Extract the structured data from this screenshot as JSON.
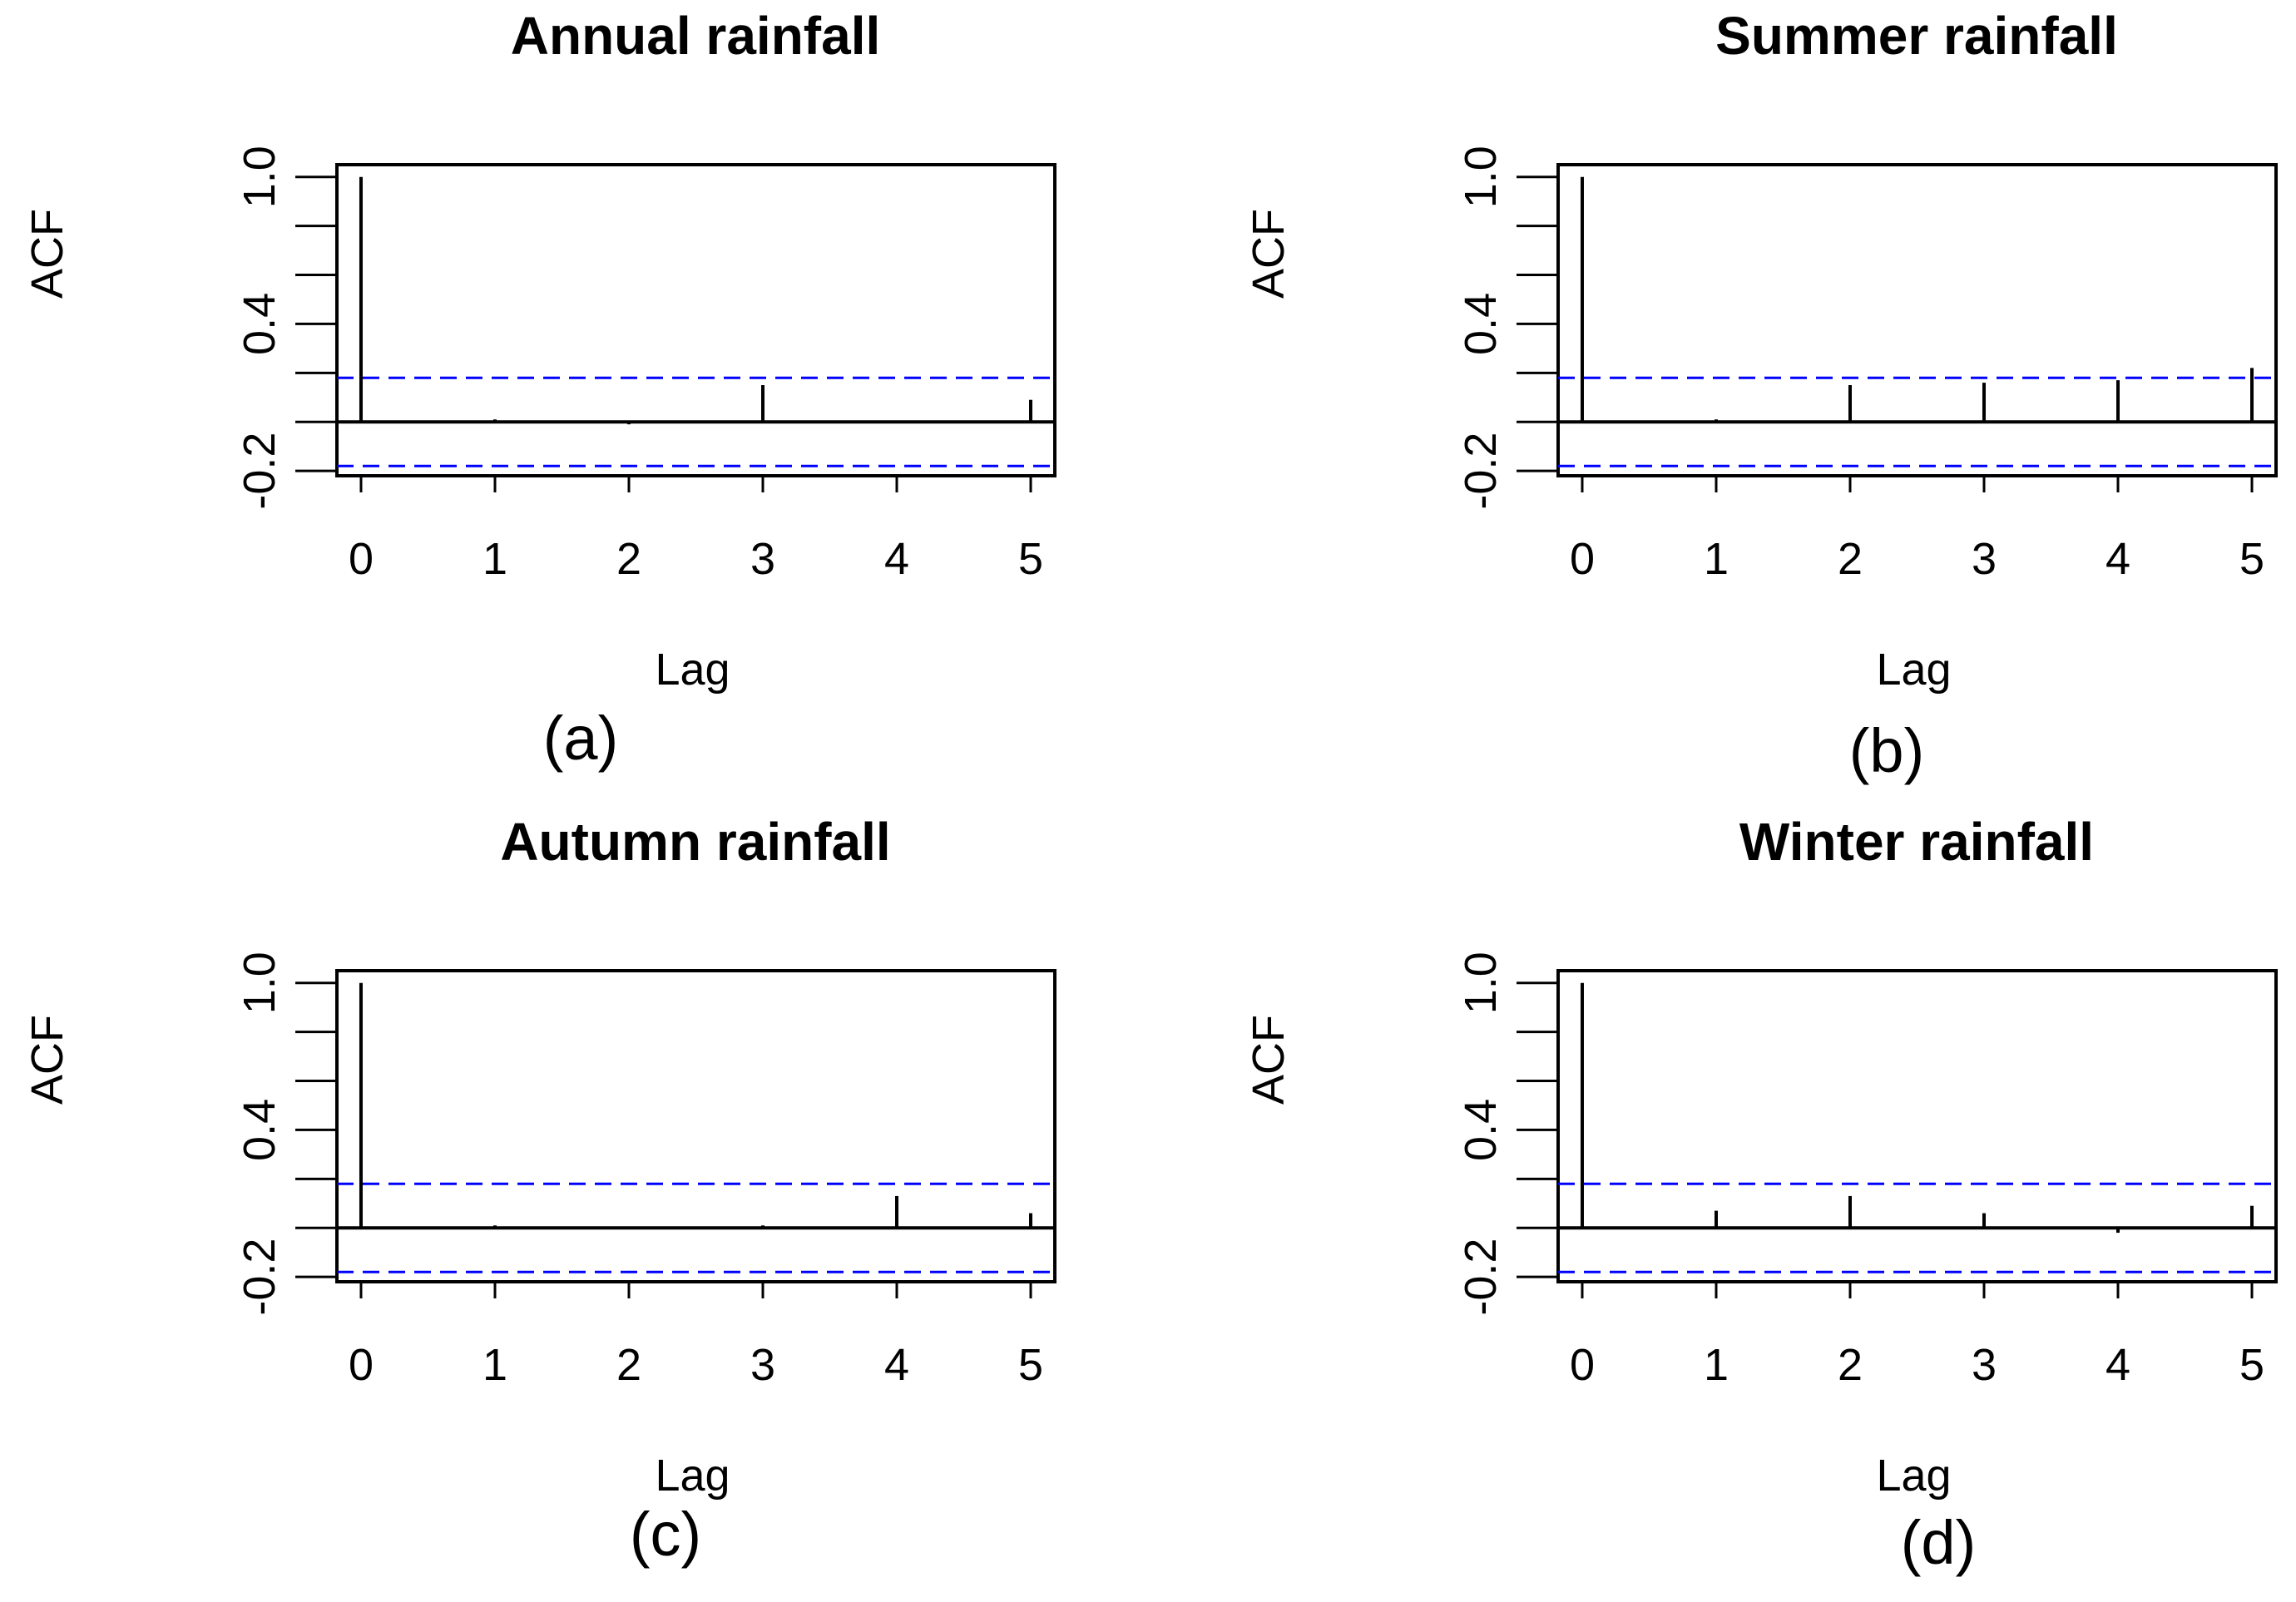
{
  "chart_data": [
    {
      "type": "bar",
      "panel": "a",
      "title": "Annual rainfall",
      "caption": "(a)",
      "xlabel": "Lag",
      "ylabel": "ACF",
      "x": [
        0,
        1,
        2,
        3,
        4,
        5
      ],
      "values": [
        1.0,
        0.01,
        -0.01,
        0.15,
        0.0,
        0.09
      ],
      "xticks": [
        "0",
        "1",
        "2",
        "3",
        "4",
        "5"
      ],
      "yticks": [
        "-0.2",
        "0.4",
        "1.0"
      ],
      "ylim": [
        -0.22,
        1.05
      ],
      "xlim": [
        -0.18,
        5.18
      ],
      "confidence_limits": [
        0.18,
        -0.18
      ],
      "colors": {
        "bars": "#000000",
        "ci": "#0000ff"
      }
    },
    {
      "type": "bar",
      "panel": "b",
      "title": "Summer rainfall",
      "caption": "(b)",
      "xlabel": "Lag",
      "ylabel": "ACF",
      "x": [
        0,
        1,
        2,
        3,
        4,
        5
      ],
      "values": [
        1.0,
        0.01,
        0.15,
        0.16,
        0.17,
        0.22
      ],
      "xticks": [
        "0",
        "1",
        "2",
        "3",
        "4",
        "5"
      ],
      "yticks": [
        "-0.2",
        "0.4",
        "1.0"
      ],
      "ylim": [
        -0.22,
        1.05
      ],
      "xlim": [
        -0.18,
        5.18
      ],
      "confidence_limits": [
        0.18,
        -0.18
      ],
      "colors": {
        "bars": "#000000",
        "ci": "#0000ff"
      }
    },
    {
      "type": "bar",
      "panel": "c",
      "title": "Autumn rainfall",
      "caption": "(c)",
      "xlabel": "Lag",
      "ylabel": "ACF",
      "x": [
        0,
        1,
        2,
        3,
        4,
        5
      ],
      "values": [
        1.0,
        0.01,
        0.0,
        0.01,
        0.13,
        0.06
      ],
      "xticks": [
        "0",
        "1",
        "2",
        "3",
        "4",
        "5"
      ],
      "yticks": [
        "-0.2",
        "0.4",
        "1.0"
      ],
      "ylim": [
        -0.22,
        1.05
      ],
      "xlim": [
        -0.18,
        5.18
      ],
      "confidence_limits": [
        0.18,
        -0.18
      ],
      "colors": {
        "bars": "#000000",
        "ci": "#0000ff"
      }
    },
    {
      "type": "bar",
      "panel": "d",
      "title": "Winter rainfall",
      "caption": "(d)",
      "xlabel": "Lag",
      "ylabel": "ACF",
      "x": [
        0,
        1,
        2,
        3,
        4,
        5
      ],
      "values": [
        1.0,
        0.07,
        0.13,
        0.06,
        -0.02,
        0.09
      ],
      "xticks": [
        "0",
        "1",
        "2",
        "3",
        "4",
        "5"
      ],
      "yticks": [
        "-0.2",
        "0.4",
        "1.0"
      ],
      "ylim": [
        -0.22,
        1.05
      ],
      "xlim": [
        -0.18,
        5.18
      ],
      "confidence_limits": [
        0.18,
        -0.18
      ],
      "colors": {
        "bars": "#000000",
        "ci": "#0000ff"
      }
    }
  ]
}
